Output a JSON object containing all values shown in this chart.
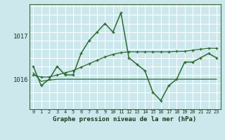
{
  "title": "Graphe pression niveau de la mer (hPa)",
  "bg_color": "#cce8ed",
  "grid_color": "#ffffff",
  "line_color": "#2d6a2d",
  "x_labels": [
    "0",
    "1",
    "2",
    "3",
    "4",
    "5",
    "6",
    "7",
    "8",
    "9",
    "10",
    "11",
    "12",
    "13",
    "14",
    "15",
    "16",
    "17",
    "18",
    "19",
    "20",
    "21",
    "22",
    "23"
  ],
  "ylim": [
    1015.3,
    1017.75
  ],
  "yticks": [
    1016,
    1017
  ],
  "series_main": [
    1016.3,
    1015.85,
    1016.0,
    1016.3,
    1016.1,
    1016.1,
    1016.6,
    1016.9,
    1017.1,
    1017.3,
    1017.1,
    1017.55,
    1016.5,
    1016.35,
    1016.2,
    1015.7,
    1015.5,
    1015.85,
    1016.0,
    1016.4,
    1016.4,
    1016.5,
    1016.6,
    1016.5
  ],
  "series_upper": [
    1016.1,
    1016.05,
    1016.05,
    1016.1,
    1016.15,
    1016.2,
    1016.28,
    1016.36,
    1016.44,
    1016.52,
    1016.58,
    1016.62,
    1016.64,
    1016.64,
    1016.64,
    1016.64,
    1016.64,
    1016.64,
    1016.65,
    1016.65,
    1016.68,
    1016.7,
    1016.72,
    1016.72
  ],
  "series_flat": [
    1016.15,
    1015.95,
    1015.98,
    1016.0,
    1016.0,
    1016.0,
    1016.0,
    1016.0,
    1016.0,
    1016.0,
    1016.0,
    1016.0,
    1016.0,
    1016.0,
    1016.0,
    1016.0,
    1016.0,
    1016.0,
    1016.0,
    1016.0,
    1016.0,
    1016.0,
    1016.0,
    1016.0
  ]
}
